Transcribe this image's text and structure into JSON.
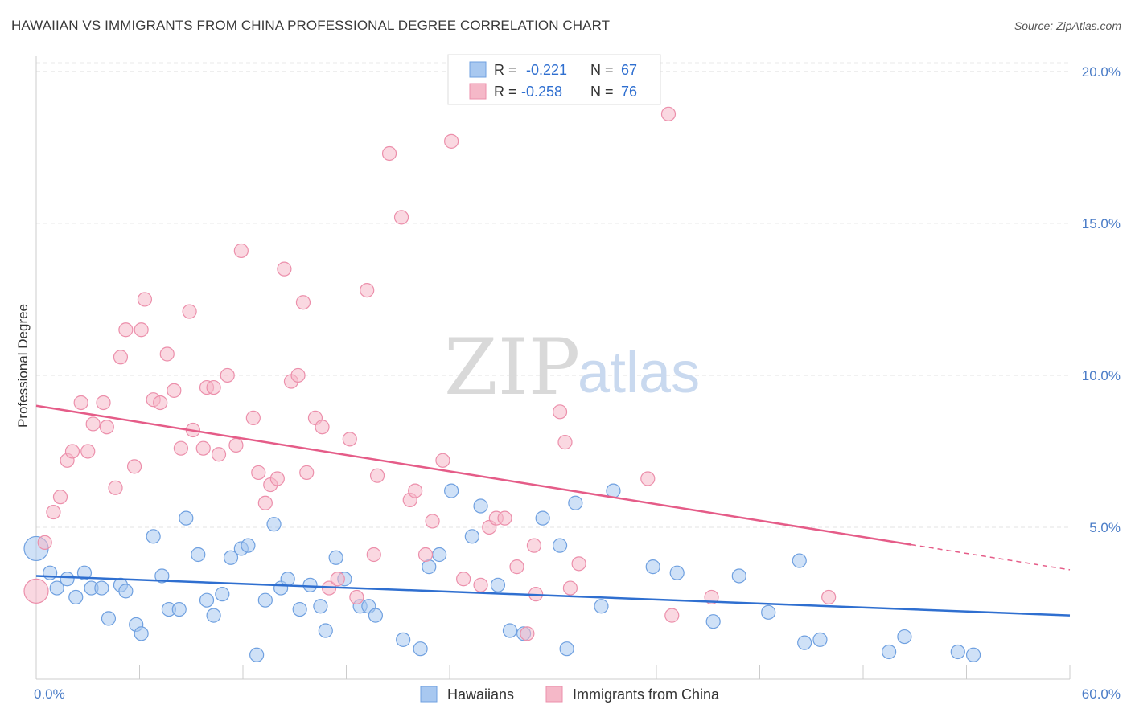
{
  "header": {
    "title": "HAWAIIAN VS IMMIGRANTS FROM CHINA PROFESSIONAL DEGREE CORRELATION CHART",
    "source": "Source: ZipAtlas.com"
  },
  "watermark": {
    "zip": "ZIP",
    "atlas": "atlas"
  },
  "legend": {
    "rows": [
      {
        "r_label": "R =",
        "r_value": "-0.221",
        "n_label": "N =",
        "n_value": "67",
        "color": "#a8c8f0"
      },
      {
        "r_label": "R =",
        "r_value": "-0.258",
        "n_label": "N =",
        "n_value": "76",
        "color": "#f5b8c8"
      }
    ]
  },
  "bottom_legend": {
    "items": [
      {
        "label": "Hawaiians",
        "color": "#a8c8f0"
      },
      {
        "label": "Immigrants from China",
        "color": "#f5b8c8"
      }
    ]
  },
  "chart_data": {
    "type": "scatter",
    "title": "HAWAIIAN VS IMMIGRANTS FROM CHINA PROFESSIONAL DEGREE CORRELATION CHART",
    "xlabel": "",
    "ylabel": "Professional Degree",
    "xlim": [
      0,
      60
    ],
    "ylim": [
      0,
      20.5
    ],
    "x_tick_labels": [
      "0.0%",
      "60.0%"
    ],
    "y_ticks": [
      5,
      10,
      15,
      20
    ],
    "y_tick_labels": [
      "5.0%",
      "10.0%",
      "15.0%",
      "20.0%"
    ],
    "grid": true,
    "series": [
      {
        "name": "Hawaiians",
        "color": "#6fa0e0",
        "fill": "#a8c8f0",
        "trend": {
          "x0": 0,
          "y0": 3.4,
          "x1": 60,
          "y1": 2.1,
          "color": "#2f6fd0"
        },
        "points": [
          [
            0.0,
            4.3
          ],
          [
            0.8,
            3.5
          ],
          [
            1.2,
            3.0
          ],
          [
            1.8,
            3.3
          ],
          [
            2.3,
            2.7
          ],
          [
            2.8,
            3.5
          ],
          [
            3.2,
            3.0
          ],
          [
            3.8,
            3.0
          ],
          [
            4.2,
            2.0
          ],
          [
            4.9,
            3.1
          ],
          [
            5.2,
            2.9
          ],
          [
            5.8,
            1.8
          ],
          [
            6.1,
            1.5
          ],
          [
            6.8,
            4.7
          ],
          [
            7.3,
            3.4
          ],
          [
            7.7,
            2.3
          ],
          [
            8.3,
            2.3
          ],
          [
            8.7,
            5.3
          ],
          [
            9.4,
            4.1
          ],
          [
            9.9,
            2.6
          ],
          [
            10.3,
            2.1
          ],
          [
            10.8,
            2.8
          ],
          [
            11.3,
            4.0
          ],
          [
            11.9,
            4.3
          ],
          [
            12.3,
            4.4
          ],
          [
            12.8,
            0.8
          ],
          [
            13.3,
            2.6
          ],
          [
            13.8,
            5.1
          ],
          [
            14.2,
            3.0
          ],
          [
            14.6,
            3.3
          ],
          [
            15.3,
            2.3
          ],
          [
            15.9,
            3.1
          ],
          [
            16.5,
            2.4
          ],
          [
            16.8,
            1.6
          ],
          [
            17.4,
            4.0
          ],
          [
            17.9,
            3.3
          ],
          [
            18.8,
            2.4
          ],
          [
            19.3,
            2.4
          ],
          [
            19.7,
            2.1
          ],
          [
            21.3,
            1.3
          ],
          [
            22.3,
            1.0
          ],
          [
            22.8,
            3.7
          ],
          [
            23.4,
            4.1
          ],
          [
            24.1,
            6.2
          ],
          [
            25.3,
            4.7
          ],
          [
            25.8,
            5.7
          ],
          [
            26.8,
            3.1
          ],
          [
            27.5,
            1.6
          ],
          [
            28.3,
            1.5
          ],
          [
            29.4,
            5.3
          ],
          [
            30.4,
            4.4
          ],
          [
            30.8,
            1.0
          ],
          [
            31.3,
            5.8
          ],
          [
            32.8,
            2.4
          ],
          [
            33.5,
            6.2
          ],
          [
            35.8,
            3.7
          ],
          [
            37.2,
            3.5
          ],
          [
            39.3,
            1.9
          ],
          [
            40.8,
            3.4
          ],
          [
            42.5,
            2.2
          ],
          [
            44.3,
            3.9
          ],
          [
            44.6,
            1.2
          ],
          [
            45.5,
            1.3
          ],
          [
            49.5,
            0.9
          ],
          [
            50.4,
            1.4
          ],
          [
            53.5,
            0.9
          ],
          [
            54.4,
            0.8
          ]
        ]
      },
      {
        "name": "Immigrants from China",
        "color": "#ec8fab",
        "fill": "#f5b8c8",
        "trend": {
          "x0": 0,
          "y0": 9.0,
          "x1": 60,
          "y1": 3.6,
          "color": "#e55c88",
          "solid_until_x": 50.8
        },
        "points": [
          [
            0.0,
            2.9
          ],
          [
            0.5,
            4.5
          ],
          [
            1.0,
            5.5
          ],
          [
            1.4,
            6.0
          ],
          [
            1.8,
            7.2
          ],
          [
            2.1,
            7.5
          ],
          [
            2.6,
            9.1
          ],
          [
            3.0,
            7.5
          ],
          [
            3.3,
            8.4
          ],
          [
            3.9,
            9.1
          ],
          [
            4.1,
            8.3
          ],
          [
            4.6,
            6.3
          ],
          [
            4.9,
            10.6
          ],
          [
            5.2,
            11.5
          ],
          [
            5.7,
            7.0
          ],
          [
            6.1,
            11.5
          ],
          [
            6.3,
            12.5
          ],
          [
            6.8,
            9.2
          ],
          [
            7.2,
            9.1
          ],
          [
            7.6,
            10.7
          ],
          [
            8.0,
            9.5
          ],
          [
            8.4,
            7.6
          ],
          [
            8.9,
            12.1
          ],
          [
            9.1,
            8.2
          ],
          [
            9.7,
            7.6
          ],
          [
            9.9,
            9.6
          ],
          [
            10.3,
            9.6
          ],
          [
            10.6,
            7.4
          ],
          [
            11.1,
            10.0
          ],
          [
            11.6,
            7.7
          ],
          [
            11.9,
            14.1
          ],
          [
            12.6,
            8.6
          ],
          [
            12.9,
            6.8
          ],
          [
            13.3,
            5.8
          ],
          [
            13.6,
            6.4
          ],
          [
            14.0,
            6.6
          ],
          [
            14.4,
            13.5
          ],
          [
            14.8,
            9.8
          ],
          [
            15.2,
            10.0
          ],
          [
            15.5,
            12.4
          ],
          [
            15.7,
            6.8
          ],
          [
            16.2,
            8.6
          ],
          [
            16.6,
            8.3
          ],
          [
            17.0,
            3.0
          ],
          [
            17.5,
            3.3
          ],
          [
            18.2,
            7.9
          ],
          [
            18.6,
            2.7
          ],
          [
            19.2,
            12.8
          ],
          [
            19.6,
            4.1
          ],
          [
            19.8,
            6.7
          ],
          [
            20.5,
            17.3
          ],
          [
            21.2,
            15.2
          ],
          [
            21.7,
            5.9
          ],
          [
            22.0,
            6.2
          ],
          [
            22.6,
            4.1
          ],
          [
            23.0,
            5.2
          ],
          [
            23.6,
            7.2
          ],
          [
            24.1,
            17.7
          ],
          [
            24.8,
            3.3
          ],
          [
            25.8,
            3.1
          ],
          [
            26.3,
            5.0
          ],
          [
            26.7,
            5.3
          ],
          [
            27.2,
            5.3
          ],
          [
            27.9,
            3.7
          ],
          [
            28.5,
            1.5
          ],
          [
            28.9,
            4.4
          ],
          [
            29.0,
            2.8
          ],
          [
            30.4,
            8.8
          ],
          [
            30.7,
            7.8
          ],
          [
            31.0,
            3.0
          ],
          [
            31.5,
            3.8
          ],
          [
            35.5,
            6.6
          ],
          [
            36.7,
            18.6
          ],
          [
            36.9,
            2.1
          ],
          [
            39.2,
            2.7
          ],
          [
            46.0,
            2.7
          ]
        ]
      }
    ]
  }
}
